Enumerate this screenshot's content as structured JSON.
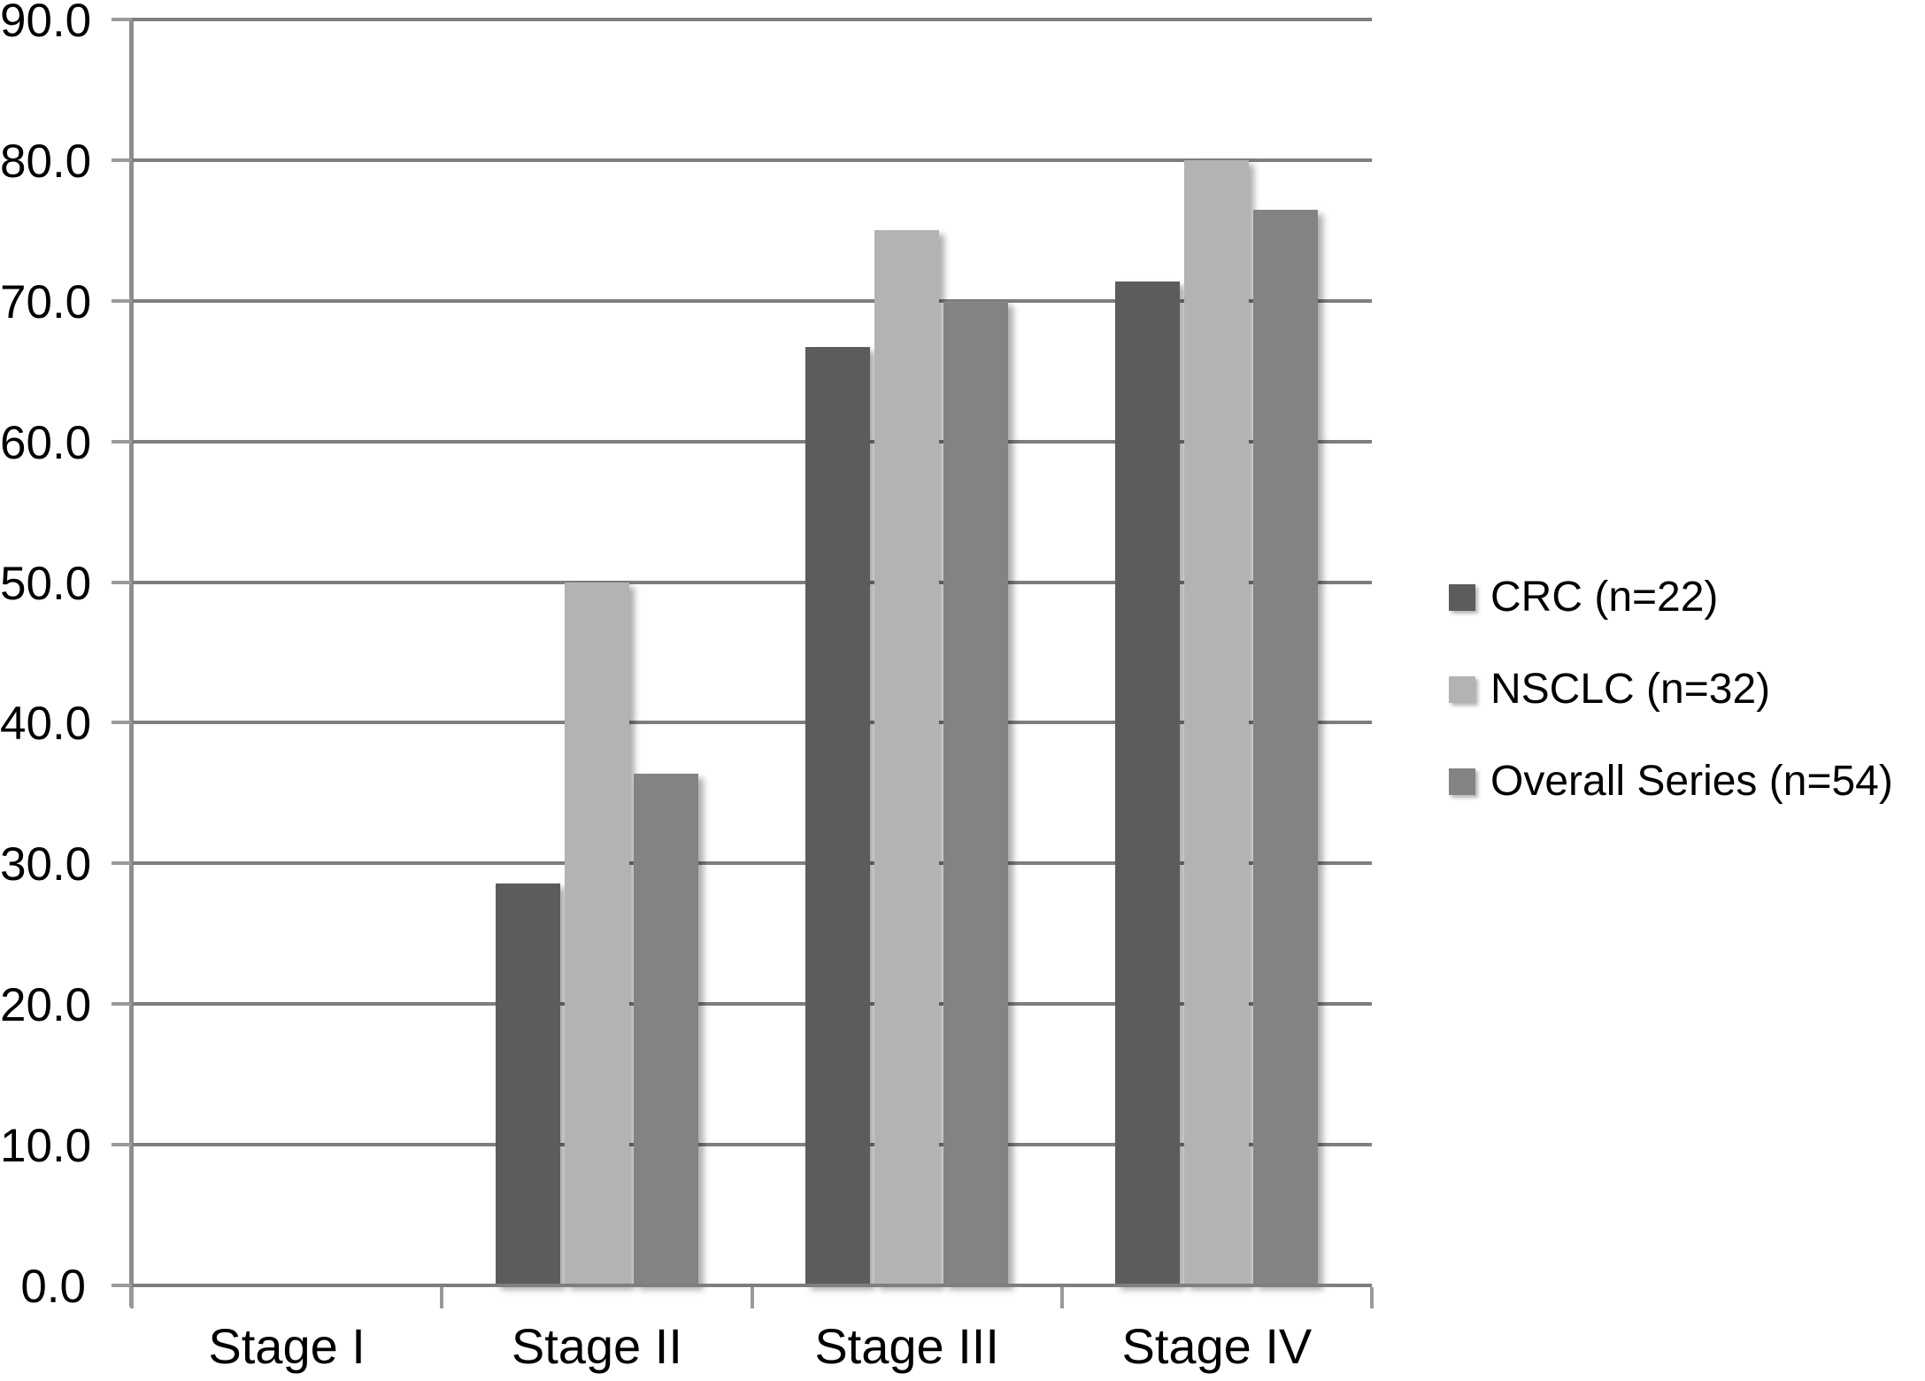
{
  "chart_data": {
    "type": "bar",
    "title": "",
    "xlabel": "",
    "ylabel": "",
    "categories": [
      "Stage I",
      "Stage II",
      "Stage III",
      "Stage IV"
    ],
    "series": [
      {
        "name": "CRC (n=22)",
        "color": "#5C5C5C",
        "values": [
          0.0,
          28.6,
          66.7,
          71.4
        ]
      },
      {
        "name": "NSCLC (n=32)",
        "color": "#B3B3B3",
        "values": [
          0.0,
          50.0,
          75.0,
          80.0
        ]
      },
      {
        "name": "Overall Series (n=54)",
        "color": "#838383",
        "values": [
          0.0,
          36.4,
          70.0,
          76.5
        ]
      }
    ],
    "ylim": [
      0,
      90
    ],
    "ytick_step": 10,
    "ytick_labels": [
      "90.0",
      "80.0",
      "70.0",
      "60.0",
      "50.0",
      "40.0",
      "30.0",
      "20.0",
      "10.0",
      "0.0"
    ],
    "grid": true,
    "legend_position": "right",
    "colors": {
      "background": "#FFFFFF",
      "gridline": "#7E7E7E",
      "axis": "#9A9A9A",
      "text": "#000000"
    }
  }
}
